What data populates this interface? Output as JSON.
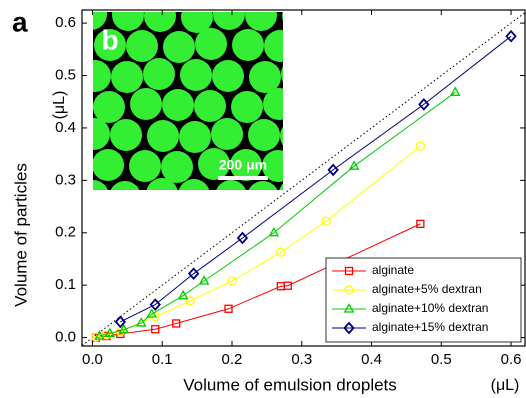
{
  "chart_data": {
    "type": "line",
    "panel_label": "a",
    "inset_label": "b",
    "inset_scale_bar": "200 μm",
    "x_label": "Volume of emulsion droplets",
    "x_unit": "(μL)",
    "y_label": "Volume of particles",
    "y_unit": "(μL)",
    "xlim": [
      -0.015,
      0.62
    ],
    "ylim": [
      -0.016,
      0.625
    ],
    "xticks": [
      {
        "value": 0,
        "label": "0.0"
      },
      0.1,
      0.2,
      0.3,
      0.4,
      0.5,
      0.6
    ],
    "yticks": [
      {
        "value": 0,
        "label": "0.0"
      },
      0.1,
      0.2,
      0.3,
      0.4,
      0.5,
      0.6
    ],
    "identity_line": true,
    "legend": "lower right",
    "series": [
      {
        "name": "alginate",
        "color": "#ff0000",
        "marker": "square",
        "x": [
          0.005,
          0.02,
          0.04,
          0.09,
          0.12,
          0.195,
          0.27,
          0.28,
          0.47
        ],
        "values": [
          0.0,
          0.003,
          0.007,
          0.016,
          0.027,
          0.055,
          0.098,
          0.099,
          0.217
        ]
      },
      {
        "name": "alginate+5% dextran",
        "color": "#ffff00",
        "marker": "circle",
        "x": [
          0.005,
          0.02,
          0.04,
          0.09,
          0.14,
          0.2,
          0.27,
          0.335,
          0.47
        ],
        "values": [
          0.001,
          0.005,
          0.012,
          0.04,
          0.07,
          0.108,
          0.163,
          0.222,
          0.365
        ]
      },
      {
        "name": "alginate+10% dextran",
        "color": "#00cc00",
        "marker": "triangle",
        "x": [
          0.01,
          0.025,
          0.045,
          0.07,
          0.085,
          0.13,
          0.16,
          0.26,
          0.375,
          0.52
        ],
        "values": [
          0.003,
          0.008,
          0.015,
          0.028,
          0.045,
          0.08,
          0.108,
          0.2,
          0.327,
          0.468
        ]
      },
      {
        "name": "alginate+15% dextran",
        "color": "#000080",
        "marker": "diamond",
        "x": [
          0.04,
          0.09,
          0.145,
          0.215,
          0.345,
          0.475,
          0.6
        ],
        "values": [
          0.03,
          0.063,
          0.122,
          0.19,
          0.32,
          0.445,
          0.575
        ]
      }
    ]
  }
}
